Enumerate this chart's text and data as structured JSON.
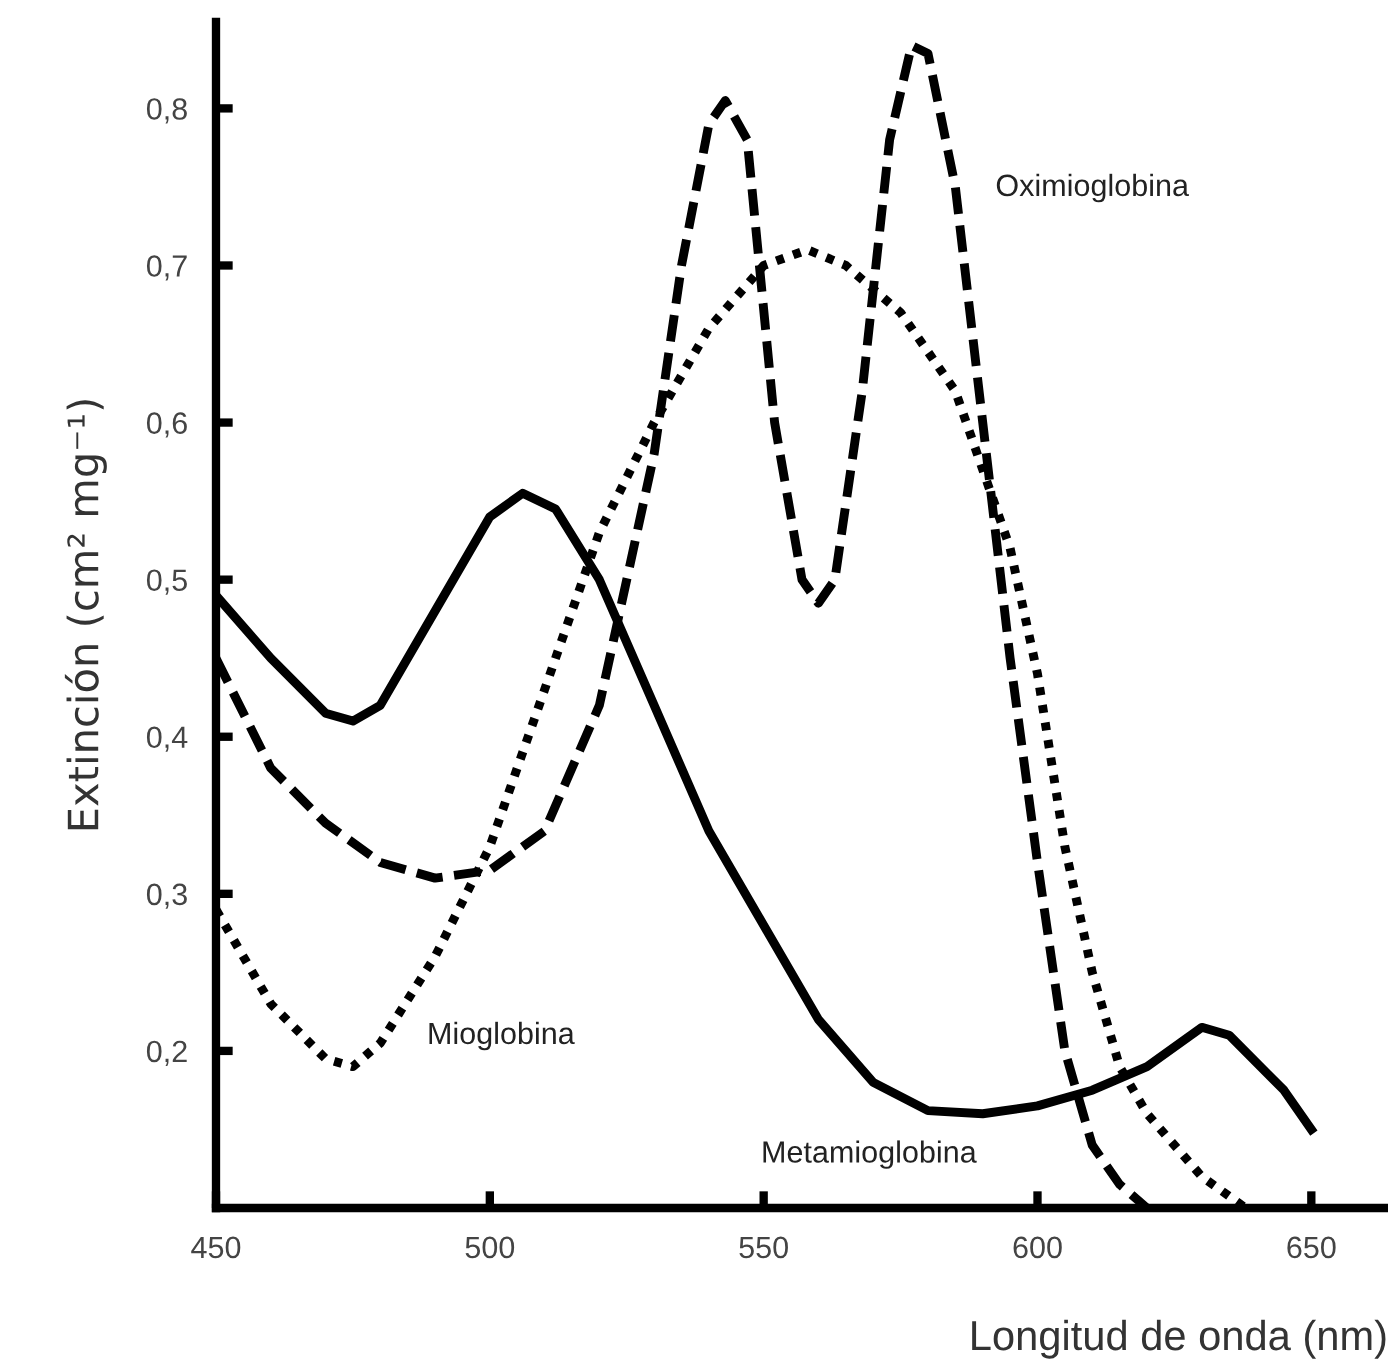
{
  "chart_data": {
    "type": "line",
    "xlabel": "Longitud de onda (nm)",
    "ylabel": "Extinción (cm² mg⁻¹)",
    "xlim": [
      450,
      664
    ],
    "ylim": [
      0.1,
      0.855
    ],
    "xticks": [
      450,
      500,
      550,
      600,
      650
    ],
    "yticks": [
      {
        "value": 0.2,
        "label": "0,2"
      },
      {
        "value": 0.3,
        "label": "0,3"
      },
      {
        "value": 0.4,
        "label": "0,4"
      },
      {
        "value": 0.5,
        "label": "0,5"
      },
      {
        "value": 0.6,
        "label": "0,6"
      },
      {
        "value": 0.7,
        "label": "0,7"
      },
      {
        "value": 0.8,
        "label": "0,8"
      }
    ],
    "grid": false,
    "marker": "none",
    "series": [
      {
        "name": "Metamioglobina",
        "color": "#000000",
        "line_style": "solid",
        "x": [
          450,
          460,
          470,
          475,
          480,
          490,
          500,
          506,
          512,
          520,
          530,
          540,
          550,
          560,
          570,
          580,
          590,
          600,
          610,
          620,
          630,
          635,
          645,
          650
        ],
        "values": [
          0.49,
          0.45,
          0.415,
          0.41,
          0.42,
          0.48,
          0.54,
          0.555,
          0.545,
          0.5,
          0.42,
          0.34,
          0.28,
          0.22,
          0.18,
          0.162,
          0.16,
          0.165,
          0.175,
          0.19,
          0.215,
          0.21,
          0.175,
          0.15
        ]
      },
      {
        "name": "Oximioglobina",
        "color": "#000000",
        "line_style": "dashed",
        "x": [
          450,
          460,
          470,
          480,
          490,
          500,
          510,
          520,
          530,
          535,
          540,
          543,
          547,
          552,
          557,
          560,
          563,
          568,
          573,
          577,
          580,
          585,
          590,
          595,
          600,
          605,
          610,
          615,
          620
        ],
        "values": [
          0.45,
          0.38,
          0.345,
          0.32,
          0.31,
          0.315,
          0.34,
          0.42,
          0.58,
          0.7,
          0.79,
          0.805,
          0.78,
          0.6,
          0.5,
          0.485,
          0.5,
          0.62,
          0.78,
          0.84,
          0.835,
          0.75,
          0.6,
          0.45,
          0.32,
          0.2,
          0.14,
          0.115,
          0.1
        ]
      },
      {
        "name": "Mioglobina",
        "color": "#000000",
        "line_style": "dotted",
        "x": [
          450,
          460,
          470,
          475,
          480,
          490,
          500,
          510,
          520,
          530,
          540,
          550,
          558,
          565,
          575,
          585,
          595,
          600,
          605,
          610,
          615,
          620,
          630,
          638
        ],
        "values": [
          0.29,
          0.23,
          0.195,
          0.19,
          0.205,
          0.26,
          0.33,
          0.43,
          0.53,
          0.6,
          0.66,
          0.7,
          0.71,
          0.7,
          0.67,
          0.62,
          0.52,
          0.44,
          0.33,
          0.25,
          0.19,
          0.16,
          0.12,
          0.1
        ]
      }
    ]
  }
}
